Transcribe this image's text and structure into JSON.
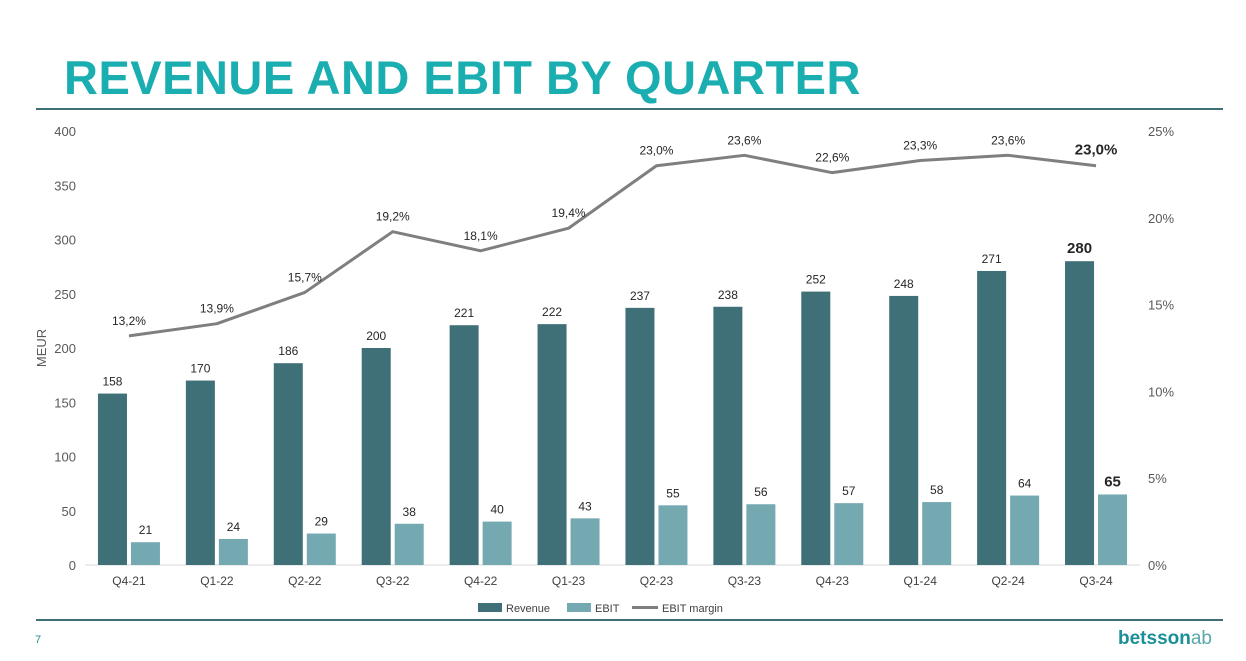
{
  "title": "REVENUE AND EBIT BY QUARTER",
  "page_number": "7",
  "logo": {
    "name": "betsson",
    "suffix": "ab"
  },
  "colors": {
    "title": "#1aaeb0",
    "revenue": "#3f6f77",
    "ebit": "#74a9b1",
    "margin": "#7f7f7f",
    "rule": "#3f6f77"
  },
  "chart_data": {
    "type": "bar",
    "categories": [
      "Q4-21",
      "Q1-22",
      "Q2-22",
      "Q3-22",
      "Q4-22",
      "Q1-23",
      "Q2-23",
      "Q3-23",
      "Q4-23",
      "Q1-24",
      "Q2-24",
      "Q3-24"
    ],
    "series": [
      {
        "name": "Revenue",
        "type": "bar",
        "axis": "left",
        "values": [
          158,
          170,
          186,
          200,
          221,
          222,
          237,
          238,
          252,
          248,
          271,
          280
        ],
        "labels": [
          "158",
          "170",
          "186",
          "200",
          "221",
          "222",
          "237",
          "238",
          "252",
          "248",
          "271",
          "280"
        ]
      },
      {
        "name": "EBIT",
        "type": "bar",
        "axis": "left",
        "values": [
          21,
          24,
          29,
          38,
          40,
          43,
          55,
          56,
          57,
          58,
          64,
          65
        ],
        "labels": [
          "21",
          "24",
          "29",
          "38",
          "40",
          "43",
          "55",
          "56",
          "57",
          "58",
          "64",
          "65"
        ]
      },
      {
        "name": "EBIT margin",
        "type": "line",
        "axis": "right",
        "values": [
          13.2,
          13.9,
          15.7,
          19.2,
          18.1,
          19.4,
          23.0,
          23.6,
          22.6,
          23.3,
          23.6,
          23.0
        ],
        "labels": [
          "13,2%",
          "13,9%",
          "15,7%",
          "19,2%",
          "18,1%",
          "19,4%",
          "23,0%",
          "23,6%",
          "22,6%",
          "23,3%",
          "23,6%",
          "23,0%"
        ]
      }
    ],
    "highlight_last": true,
    "ylabel": "MEUR",
    "ylim": [
      0,
      400
    ],
    "yticks": [
      0,
      50,
      100,
      150,
      200,
      250,
      300,
      350,
      400
    ],
    "ytick_labels": [
      "0",
      "50",
      "100",
      "150",
      "200",
      "250",
      "300",
      "350",
      "400"
    ],
    "y2lim": [
      0,
      25
    ],
    "y2ticks": [
      0,
      5,
      10,
      15,
      20,
      25
    ],
    "y2tick_labels": [
      "0%",
      "5%",
      "10%",
      "15%",
      "20%",
      "25%"
    ],
    "legend": {
      "position": "bottom",
      "items": [
        "Revenue",
        "EBIT",
        "EBIT margin"
      ]
    },
    "grid": false
  }
}
